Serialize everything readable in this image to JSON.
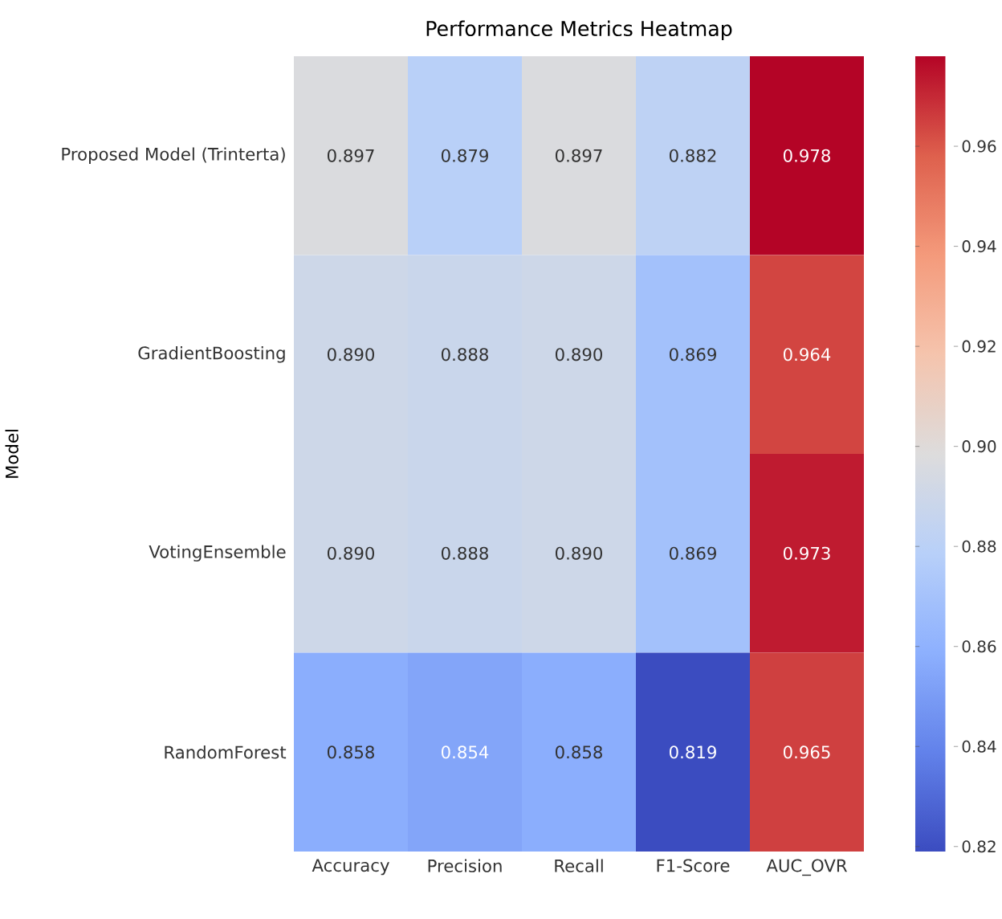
{
  "chart_data": {
    "type": "heatmap",
    "title": "Performance Metrics Heatmap",
    "ylabel": "Model",
    "categories": [
      "Accuracy",
      "Precision",
      "Recall",
      "F1-Score",
      "AUC_OVR"
    ],
    "y_categories": [
      "Proposed Model (Trinterta)",
      "GradientBoosting",
      "VotingEnsemble",
      "RandomForest"
    ],
    "cells": [
      [
        0.897,
        0.879,
        0.897,
        0.882,
        0.978
      ],
      [
        0.89,
        0.888,
        0.89,
        0.869,
        0.964
      ],
      [
        0.89,
        0.888,
        0.89,
        0.869,
        0.973
      ],
      [
        0.858,
        0.854,
        0.858,
        0.819,
        0.965
      ]
    ],
    "cell_labels": [
      [
        "0.897",
        "0.879",
        "0.897",
        "0.882",
        "0.978"
      ],
      [
        "0.890",
        "0.888",
        "0.890",
        "0.869",
        "0.964"
      ],
      [
        "0.890",
        "0.888",
        "0.890",
        "0.869",
        "0.973"
      ],
      [
        "0.858",
        "0.854",
        "0.858",
        "0.819",
        "0.965"
      ]
    ],
    "clim": [
      0.819,
      0.978
    ],
    "cticks": [
      0.82,
      0.84,
      0.86,
      0.88,
      {
        "value": 0.9,
        "label": "0.90"
      },
      0.92,
      0.94,
      0.96
    ]
  }
}
